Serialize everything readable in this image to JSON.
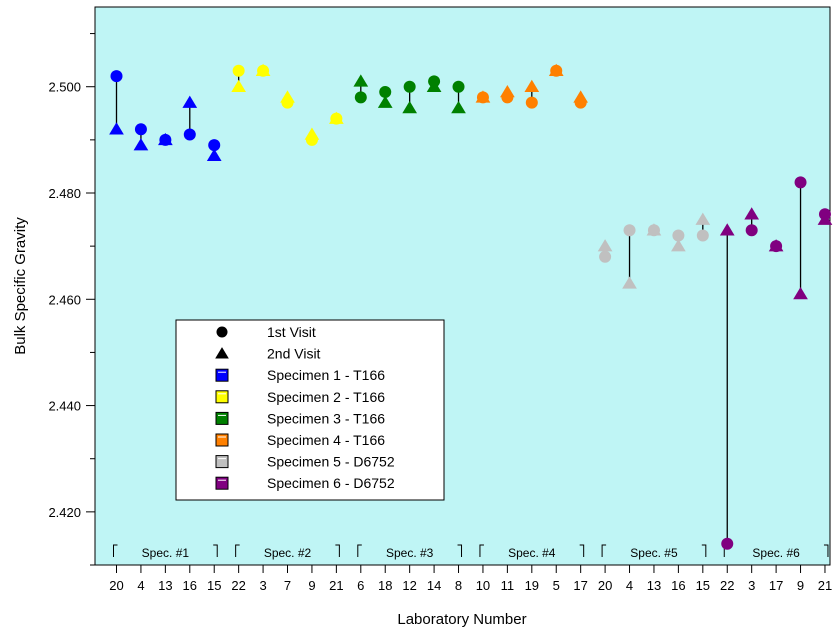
{
  "chart_data": {
    "type": "scatter",
    "xlabel": "Laboratory Number",
    "ylabel": "Bulk Specific Gravity",
    "ylim": [
      2.41,
      2.515
    ],
    "yticks": [
      "2.420",
      "2.440",
      "2.460",
      "2.480",
      "2.500"
    ],
    "grid": false,
    "plot_background": "#bff5f5",
    "legend_position": "lower-left",
    "marker_legend": [
      {
        "label": "1st Visit",
        "marker": "circle"
      },
      {
        "label": "2nd Visit",
        "marker": "triangle"
      }
    ],
    "categories": [
      "20",
      "4",
      "13",
      "16",
      "15",
      "22",
      "3",
      "7",
      "9",
      "21",
      "6",
      "18",
      "12",
      "14",
      "8",
      "10",
      "11",
      "19",
      "5",
      "17",
      "20",
      "4",
      "13",
      "16",
      "15",
      "22",
      "3",
      "17",
      "9",
      "21"
    ],
    "groups": [
      {
        "label": "Spec. #1",
        "start": 0,
        "end": 4
      },
      {
        "label": "Spec. #2",
        "start": 5,
        "end": 9
      },
      {
        "label": "Spec. #3",
        "start": 10,
        "end": 14
      },
      {
        "label": "Spec. #4",
        "start": 15,
        "end": 19
      },
      {
        "label": "Spec. #5",
        "start": 20,
        "end": 24
      },
      {
        "label": "Spec. #6",
        "start": 25,
        "end": 29
      }
    ],
    "series": [
      {
        "name": "Specimen 1 - T166",
        "color": "#0000ff",
        "start": 0,
        "first_visit": [
          2.502,
          2.492,
          2.49,
          2.491,
          2.489
        ],
        "second_visit": [
          2.492,
          2.489,
          2.49,
          2.497,
          2.487
        ]
      },
      {
        "name": "Specimen 2 - T166",
        "color": "#ffff00",
        "start": 5,
        "first_visit": [
          2.503,
          2.503,
          2.497,
          2.49,
          2.494
        ],
        "second_visit": [
          2.5,
          2.503,
          2.498,
          2.491,
          2.494
        ]
      },
      {
        "name": "Specimen 3 - T166",
        "color": "#008000",
        "start": 10,
        "first_visit": [
          2.498,
          2.499,
          2.5,
          2.501,
          2.5
        ],
        "second_visit": [
          2.501,
          2.497,
          2.496,
          2.5,
          2.496
        ]
      },
      {
        "name": "Specimen 4 - T166",
        "color": "#ff8000",
        "start": 15,
        "first_visit": [
          2.498,
          2.498,
          2.497,
          2.503,
          2.497
        ],
        "second_visit": [
          2.498,
          2.499,
          2.5,
          2.503,
          2.498
        ]
      },
      {
        "name": "Specimen 5 - D6752",
        "color": "#c0c0c0",
        "start": 20,
        "first_visit": [
          2.468,
          2.473,
          2.473,
          2.472,
          2.472
        ],
        "second_visit": [
          2.47,
          2.463,
          2.473,
          2.47,
          2.475
        ]
      },
      {
        "name": "Specimen 6 - D6752",
        "color": "#800080",
        "start": 25,
        "first_visit": [
          2.414,
          2.473,
          2.47,
          2.482,
          2.476
        ],
        "second_visit": [
          2.473,
          2.476,
          2.47,
          2.461,
          2.475
        ]
      }
    ]
  }
}
